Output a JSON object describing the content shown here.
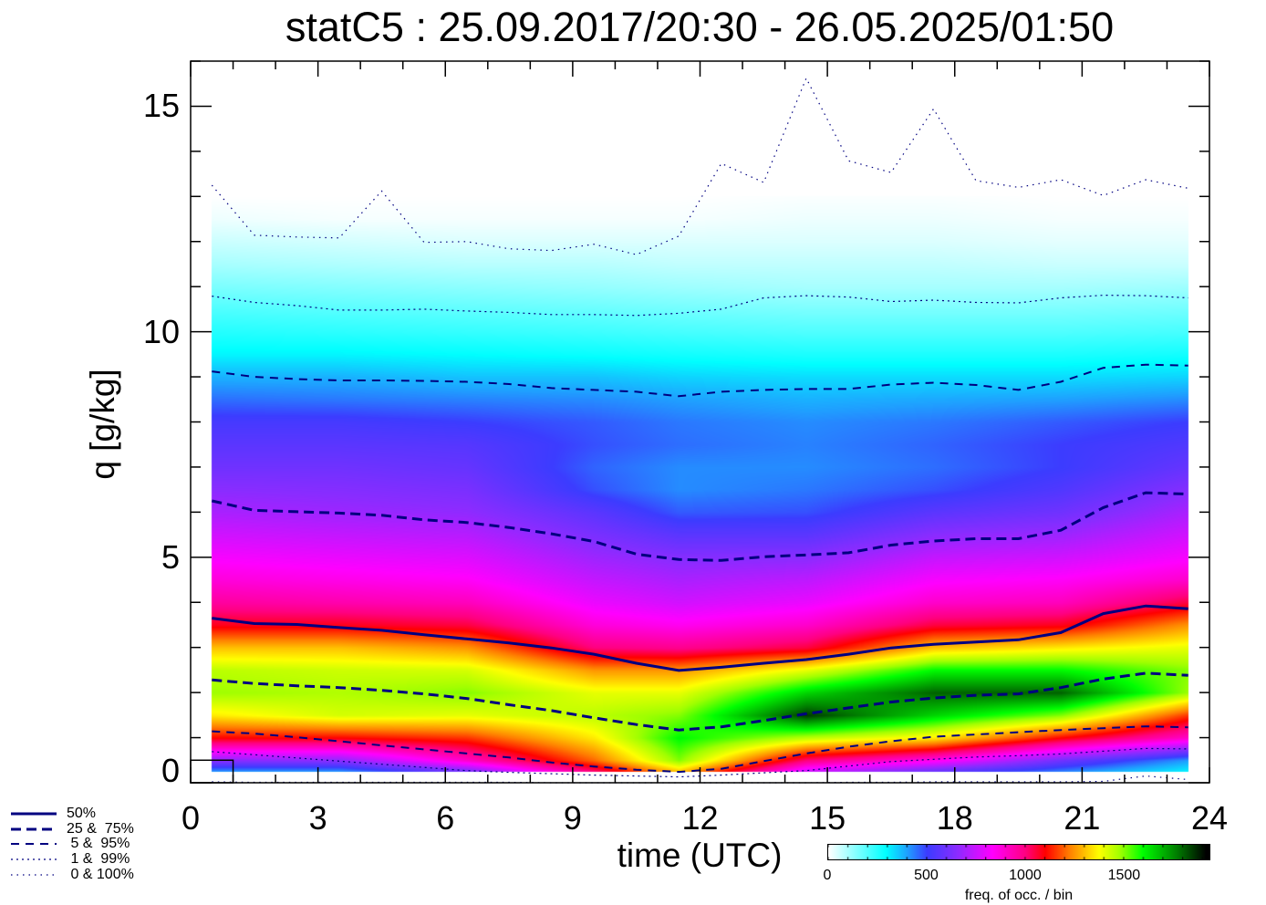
{
  "chart_data": {
    "type": "heatmap",
    "title": "statC5 : 25.09.2017/20:30 - 26.05.2025/01:50",
    "xlabel": "time (UTC)",
    "ylabel": "q [g/kg]",
    "xlim": [
      0,
      24
    ],
    "ylim": [
      0,
      16
    ],
    "xticks": [
      "0",
      "3",
      "6",
      "9",
      "12",
      "15",
      "18",
      "21",
      "24"
    ],
    "yticks": [
      "0",
      "5",
      "10",
      "15"
    ],
    "line_color": "#000080",
    "heatmap": {
      "x": [
        0.5,
        3.5,
        6.5,
        9.5,
        11.5,
        14.5,
        17.5,
        20.5,
        23.5
      ],
      "q": [
        0,
        0.5,
        1,
        1.5,
        2,
        2.5,
        3,
        3.5,
        4,
        4.5,
        5,
        5.5,
        6,
        6.5,
        7,
        7.5,
        8,
        8.5,
        9,
        9.5,
        10,
        10.5,
        11,
        11.5,
        12,
        12.5,
        13
      ],
      "q_min": 0.24,
      "columns": [
        [
          150,
          650,
          1100,
          1350,
          1480,
          1450,
          1300,
          1080,
          960,
          880,
          820,
          760,
          700,
          650,
          600,
          560,
          520,
          450,
          380,
          300,
          250,
          200,
          150,
          100,
          60,
          20,
          0
        ],
        [
          150,
          650,
          1100,
          1420,
          1460,
          1430,
          1300,
          1080,
          940,
          860,
          800,
          740,
          680,
          640,
          600,
          560,
          520,
          440,
          380,
          300,
          240,
          190,
          140,
          90,
          50,
          10,
          0
        ],
        [
          300,
          900,
          1150,
          1400,
          1500,
          1420,
          1250,
          1050,
          920,
          840,
          780,
          720,
          660,
          620,
          580,
          550,
          500,
          430,
          360,
          290,
          230,
          180,
          130,
          80,
          40,
          10,
          0
        ],
        [
          800,
          1200,
          1350,
          1450,
          1400,
          1250,
          1000,
          880,
          800,
          740,
          680,
          620,
          560,
          480,
          460,
          480,
          470,
          420,
          360,
          280,
          220,
          170,
          120,
          80,
          40,
          10,
          0
        ],
        [
          1100,
          1500,
          1600,
          1500,
          1400,
          1250,
          980,
          850,
          760,
          700,
          640,
          560,
          470,
          420,
          420,
          450,
          440,
          400,
          340,
          270,
          210,
          160,
          110,
          70,
          40,
          10,
          0
        ],
        [
          500,
          1000,
          1450,
          1850,
          1650,
          1400,
          1050,
          900,
          800,
          730,
          650,
          560,
          480,
          440,
          420,
          430,
          420,
          380,
          330,
          260,
          200,
          150,
          100,
          70,
          40,
          20,
          5
        ],
        [
          300,
          850,
          1350,
          1650,
          1800,
          1600,
          1300,
          1050,
          900,
          820,
          740,
          650,
          560,
          480,
          450,
          460,
          440,
          390,
          330,
          260,
          200,
          150,
          100,
          70,
          40,
          20,
          5
        ],
        [
          250,
          600,
          1100,
          1500,
          1800,
          1600,
          1350,
          1080,
          920,
          840,
          760,
          680,
          600,
          540,
          500,
          500,
          470,
          400,
          330,
          260,
          200,
          150,
          100,
          60,
          30,
          10,
          0
        ],
        [
          200,
          400,
          900,
          1150,
          1480,
          1500,
          1400,
          1250,
          1050,
          900,
          820,
          760,
          700,
          640,
          580,
          540,
          500,
          420,
          340,
          270,
          210,
          160,
          110,
          60,
          30,
          10,
          0
        ]
      ]
    },
    "colorbar": {
      "label": "freq. of occ. / bin",
      "range": [
        0,
        1936
      ],
      "ticks": [
        "0",
        "500",
        "1000",
        "1500"
      ],
      "tick_values": [
        0,
        500,
        1000,
        1500
      ],
      "colormap": [
        [
          0,
          "#ffffff"
        ],
        [
          290,
          "#00ffff"
        ],
        [
          400,
          "#1fa0ff"
        ],
        [
          500,
          "#3c3cff"
        ],
        [
          650,
          "#8a2cff"
        ],
        [
          830,
          "#ff00ff"
        ],
        [
          1000,
          "#ff0080"
        ],
        [
          1100,
          "#ff0000"
        ],
        [
          1225,
          "#ff8000"
        ],
        [
          1373,
          "#ffff00"
        ],
        [
          1480,
          "#a0ff00"
        ],
        [
          1594,
          "#00ff00"
        ],
        [
          1765,
          "#008000"
        ],
        [
          1917,
          "#000000"
        ]
      ]
    },
    "x": [
      0.5,
      1.5,
      2.5,
      3.5,
      4.5,
      5.5,
      6.5,
      7.5,
      8.5,
      9.5,
      10.5,
      11.5,
      12.5,
      13.5,
      14.5,
      15.5,
      16.5,
      17.5,
      18.5,
      19.5,
      20.5,
      21.5,
      22.5,
      23.5
    ],
    "series": [
      {
        "name": "100%",
        "style": "dot0",
        "values": [
          13.25,
          12.14,
          12.1,
          12.08,
          13.12,
          11.98,
          12.0,
          11.84,
          11.8,
          11.94,
          11.71,
          12.12,
          13.73,
          13.31,
          15.62,
          13.79,
          13.53,
          14.94,
          13.35,
          13.2,
          13.37,
          13.02,
          13.37,
          13.18
        ]
      },
      {
        "name": "99%",
        "style": "dot1",
        "values": [
          10.79,
          10.65,
          10.58,
          10.48,
          10.48,
          10.5,
          10.46,
          10.43,
          10.38,
          10.38,
          10.36,
          10.41,
          10.5,
          10.75,
          10.8,
          10.77,
          10.67,
          10.7,
          10.65,
          10.64,
          10.75,
          10.81,
          10.8,
          10.75
        ]
      },
      {
        "name": "95%",
        "style": "dash5",
        "values": [
          9.12,
          9.0,
          8.95,
          8.92,
          8.92,
          8.91,
          8.89,
          8.84,
          8.75,
          8.71,
          8.67,
          8.57,
          8.67,
          8.71,
          8.73,
          8.73,
          8.83,
          8.87,
          8.82,
          8.71,
          8.89,
          9.2,
          9.27,
          9.25
        ]
      },
      {
        "name": "75%",
        "style": "dash25",
        "values": [
          6.25,
          6.04,
          6.01,
          5.98,
          5.93,
          5.83,
          5.77,
          5.66,
          5.52,
          5.35,
          5.07,
          4.95,
          4.93,
          5.01,
          5.05,
          5.1,
          5.27,
          5.36,
          5.41,
          5.41,
          5.6,
          6.1,
          6.43,
          6.4
        ]
      },
      {
        "name": "50%",
        "style": "solid",
        "values": [
          3.65,
          3.53,
          3.51,
          3.44,
          3.38,
          3.28,
          3.19,
          3.1,
          2.99,
          2.85,
          2.65,
          2.49,
          2.56,
          2.65,
          2.73,
          2.85,
          2.99,
          3.07,
          3.12,
          3.17,
          3.33,
          3.75,
          3.92,
          3.86
        ]
      },
      {
        "name": "25%",
        "style": "dash25",
        "values": [
          2.28,
          2.2,
          2.15,
          2.11,
          2.05,
          1.97,
          1.87,
          1.73,
          1.6,
          1.44,
          1.29,
          1.17,
          1.24,
          1.38,
          1.53,
          1.66,
          1.79,
          1.88,
          1.94,
          1.97,
          2.11,
          2.3,
          2.43,
          2.38
        ]
      },
      {
        "name": "5%",
        "style": "dash5",
        "values": [
          1.14,
          1.09,
          1.01,
          0.92,
          0.83,
          0.74,
          0.65,
          0.56,
          0.45,
          0.36,
          0.29,
          0.24,
          0.31,
          0.48,
          0.65,
          0.8,
          0.92,
          1.02,
          1.07,
          1.12,
          1.17,
          1.21,
          1.25,
          1.23
        ]
      },
      {
        "name": "1%",
        "style": "dot1",
        "values": [
          0.69,
          0.62,
          0.55,
          0.48,
          0.41,
          0.34,
          0.27,
          0.23,
          0.2,
          0.17,
          0.15,
          0.13,
          0.17,
          0.22,
          0.27,
          0.37,
          0.47,
          0.52,
          0.57,
          0.6,
          0.64,
          0.7,
          0.76,
          0.75
        ]
      },
      {
        "name": "0%",
        "style": "dot0",
        "values": [
          0.02,
          0.01,
          0.01,
          0.01,
          0.01,
          0.01,
          0.01,
          0.01,
          0.0,
          0.0,
          0.0,
          0.0,
          0.0,
          0.0,
          0.0,
          0.01,
          0.01,
          0.02,
          0.02,
          0.02,
          0.02,
          0.03,
          0.15,
          0.07
        ]
      }
    ],
    "legend": {
      "placement": "bottom-left",
      "entries": [
        {
          "label": "50%",
          "style": "solid"
        },
        {
          "label": "25 &  75%",
          "style": "dash25"
        },
        {
          "label": " 5 &  95%",
          "style": "dash5"
        },
        {
          "label": " 1 &  99%",
          "style": "dot1"
        },
        {
          "label": " 0 & 100%",
          "style": "dot0"
        }
      ]
    }
  }
}
